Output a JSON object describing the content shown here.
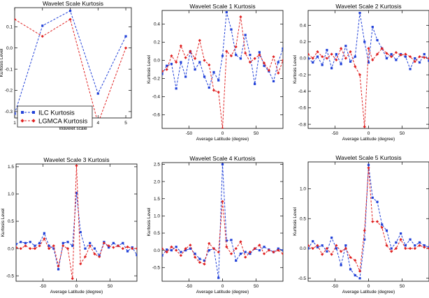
{
  "chart_data": [
    {
      "type": "line",
      "title": "Wavelet Scale Kurtosis",
      "xlabel": "Wavelet scale",
      "ylabel": "Kurtosis Level",
      "xlim": [
        1,
        5.2
      ],
      "ylim": [
        -0.33,
        0.19
      ],
      "xticks": [
        1,
        2,
        3,
        4,
        5
      ],
      "yticks": [
        -0.3,
        -0.2,
        -0.1,
        0.0,
        0.1
      ],
      "ytick_labels": [
        "-0.3",
        "-0.2",
        "-0.1",
        "0.0",
        "0.1"
      ],
      "legend": {
        "position": "bottom-left",
        "entries": [
          "ILC Kurtosis",
          "LGMCA Kurtosis"
        ]
      },
      "series": [
        {
          "name": "ILC Kurtosis",
          "color": "#2040d8",
          "x": [
            1,
            2,
            3,
            4,
            5
          ],
          "values": [
            -0.31,
            0.105,
            0.175,
            -0.215,
            0.055
          ]
        },
        {
          "name": "LGMCA Kurtosis",
          "color": "#e02020",
          "x": [
            1,
            2,
            3,
            4,
            5
          ],
          "values": [
            0.135,
            0.055,
            0.135,
            -0.355,
            0.0
          ]
        }
      ]
    },
    {
      "type": "line",
      "title": "Wavelet Scale 1 Kurtosis",
      "xlabel": "Average Latitude (degree)",
      "ylabel": "Kurtosis Level",
      "xlim": [
        -90,
        90
      ],
      "ylim": [
        -0.75,
        0.55
      ],
      "xticks": [
        -50,
        0,
        50
      ],
      "yticks": [
        -0.6,
        -0.4,
        -0.2,
        0.0,
        0.2,
        0.4
      ],
      "ytick_labels": [
        "-0.6",
        "-0.4",
        "-0.2",
        "0.0",
        "0.2",
        "0.4"
      ],
      "series": [
        {
          "name": "ILC Kurtosis",
          "color": "#2040d8",
          "x": [
            -90,
            -83,
            -76,
            -69,
            -62,
            -55,
            -48,
            -41,
            -34,
            -27,
            -20,
            -13,
            -6,
            0,
            6,
            13,
            20,
            27,
            34,
            41,
            48,
            55,
            62,
            69,
            76,
            83,
            90
          ],
          "values": [
            -0.15,
            -0.06,
            -0.04,
            -0.31,
            -0.02,
            -0.18,
            0.1,
            -0.1,
            -0.02,
            -0.18,
            -0.3,
            -0.13,
            -0.22,
            0.05,
            0.53,
            0.34,
            0.06,
            0.02,
            0.28,
            0.06,
            -0.26,
            0.09,
            -0.06,
            -0.12,
            -0.23,
            -0.02,
            0.13
          ]
        },
        {
          "name": "LGMCA Kurtosis",
          "color": "#e02020",
          "x": [
            -90,
            -83,
            -76,
            -69,
            -62,
            -55,
            -48,
            -41,
            -34,
            -27,
            -20,
            -13,
            -6,
            0,
            6,
            13,
            20,
            27,
            34,
            41,
            48,
            55,
            62,
            69,
            76,
            83,
            90
          ],
          "values": [
            -0.12,
            -0.1,
            0.05,
            -0.02,
            0.16,
            0.03,
            0.1,
            0.02,
            0.22,
            0.0,
            -0.05,
            -0.33,
            -0.35,
            -0.75,
            0.1,
            0.05,
            0.15,
            0.48,
            0.08,
            -0.02,
            0.02,
            0.06,
            -0.03,
            -0.11,
            0.04,
            -0.14,
            0.0
          ]
        }
      ]
    },
    {
      "type": "line",
      "title": "Wavelet Scale 2 Kurtosis",
      "xlabel": "Average Latitude (degree)",
      "ylabel": "Kurtosis Level",
      "xlim": [
        -90,
        90
      ],
      "ylim": [
        -0.85,
        0.58
      ],
      "xticks": [
        -50,
        0,
        50
      ],
      "yticks": [
        -0.8,
        -0.6,
        -0.4,
        -0.2,
        0.0,
        0.2,
        0.4
      ],
      "ytick_labels": [
        "-0.8",
        "-0.6",
        "-0.4",
        "-0.2",
        "0.0",
        "0.2",
        "0.4"
      ],
      "series": [
        {
          "name": "ILC Kurtosis",
          "color": "#2040d8",
          "x": [
            -90,
            -83,
            -76,
            -69,
            -62,
            -55,
            -48,
            -41,
            -34,
            -27,
            -20,
            -13,
            -6,
            0,
            6,
            13,
            20,
            27,
            34,
            41,
            48,
            55,
            62,
            69,
            76,
            83,
            90
          ],
          "values": [
            0.0,
            -0.05,
            0.02,
            -0.08,
            0.1,
            -0.12,
            0.05,
            -0.07,
            0.15,
            -0.04,
            0.02,
            0.55,
            0.2,
            -0.05,
            0.38,
            0.22,
            0.12,
            0.0,
            0.05,
            -0.02,
            0.05,
            0.02,
            -0.13,
            0.0,
            -0.05,
            0.05,
            -0.03
          ]
        },
        {
          "name": "LGMCA Kurtosis",
          "color": "#e02020",
          "x": [
            -90,
            -83,
            -76,
            -69,
            -62,
            -55,
            -48,
            -41,
            -34,
            -27,
            -20,
            -13,
            -6,
            0,
            6,
            13,
            20,
            27,
            34,
            41,
            48,
            55,
            62,
            69,
            76,
            83,
            90
          ],
          "values": [
            0.05,
            0.0,
            0.08,
            0.02,
            0.0,
            0.05,
            -0.02,
            0.12,
            0.0,
            0.08,
            -0.1,
            -0.2,
            -0.83,
            0.12,
            -0.02,
            0.05,
            0.12,
            0.06,
            0.02,
            0.07,
            0.04,
            0.05,
            0.02,
            -0.04,
            0.02,
            0.01,
            0.0
          ]
        }
      ]
    },
    {
      "type": "line",
      "title": "Wavelet Scale 3 Kurtosis",
      "xlabel": "Average Latitude (degree)",
      "ylabel": "Kurtosis Level",
      "xlim": [
        -90,
        90
      ],
      "ylim": [
        -0.6,
        1.55
      ],
      "xticks": [
        -50,
        0,
        50
      ],
      "yticks": [
        -0.5,
        0.0,
        0.5,
        1.0,
        1.5
      ],
      "ytick_labels": [
        "-0.5",
        "0.0",
        "0.5",
        "1.0",
        "1.5"
      ],
      "series": [
        {
          "name": "ILC Kurtosis",
          "color": "#2040d8",
          "x": [
            -90,
            -83,
            -76,
            -69,
            -62,
            -55,
            -48,
            -41,
            -34,
            -27,
            -20,
            -13,
            -6,
            0,
            6,
            13,
            20,
            27,
            34,
            41,
            48,
            55,
            62,
            69,
            76,
            83,
            90
          ],
          "values": [
            0.08,
            0.12,
            0.1,
            0.12,
            0.05,
            0.1,
            0.28,
            0.05,
            0.0,
            -0.38,
            0.1,
            0.12,
            0.05,
            1.02,
            0.3,
            0.0,
            0.1,
            0.0,
            -0.13,
            0.12,
            0.02,
            0.1,
            0.05,
            0.1,
            -0.05,
            0.02,
            -0.12
          ]
        },
        {
          "name": "LGMCA Kurtosis",
          "color": "#e02020",
          "x": [
            -90,
            -83,
            -76,
            -69,
            -62,
            -55,
            -48,
            -41,
            -34,
            -27,
            -20,
            -13,
            -6,
            0,
            6,
            13,
            20,
            27,
            34,
            41,
            48,
            55,
            62,
            69,
            76,
            83,
            90
          ],
          "values": [
            0.02,
            0.0,
            0.05,
            0.0,
            0.0,
            0.05,
            0.18,
            0.0,
            0.05,
            -0.32,
            0.05,
            0.0,
            -0.55,
            1.52,
            -0.28,
            -0.15,
            0.05,
            -0.1,
            -0.15,
            0.1,
            0.05,
            0.02,
            0.05,
            0.0,
            0.03,
            0.0,
            0.0
          ]
        }
      ]
    },
    {
      "type": "line",
      "title": "Wavelet Scale 4 Kurtosis",
      "xlabel": "Average Latitude (degree)",
      "ylabel": "Kurtosis Level",
      "xlim": [
        -90,
        90
      ],
      "ylim": [
        -0.9,
        2.55
      ],
      "xticks": [
        -50,
        0,
        50
      ],
      "yticks": [
        -0.5,
        0.0,
        0.5,
        1.0,
        1.5,
        2.0,
        2.5
      ],
      "ytick_labels": [
        "-0.5",
        "0.0",
        "0.5",
        "1.0",
        "1.5",
        "2.0",
        "2.5"
      ],
      "series": [
        {
          "name": "ILC Kurtosis",
          "color": "#2040d8",
          "x": [
            -90,
            -83,
            -76,
            -69,
            -62,
            -55,
            -48,
            -41,
            -34,
            -27,
            -20,
            -13,
            -6,
            0,
            6,
            13,
            20,
            27,
            34,
            41,
            48,
            55,
            62,
            69,
            76,
            83,
            90
          ],
          "values": [
            -0.15,
            0.02,
            0.0,
            0.1,
            -0.05,
            0.0,
            0.05,
            -0.1,
            -0.25,
            -0.3,
            0.0,
            0.05,
            -0.8,
            2.5,
            0.28,
            0.3,
            -0.3,
            -0.1,
            -0.05,
            -0.1,
            0.05,
            0.0,
            0.1,
            0.02,
            -0.05,
            0.05,
            0.0
          ]
        },
        {
          "name": "LGMCA Kurtosis",
          "color": "#e02020",
          "x": [
            -90,
            -83,
            -76,
            -69,
            -62,
            -55,
            -48,
            -41,
            -34,
            -27,
            -20,
            -13,
            -6,
            0,
            6,
            13,
            20,
            27,
            34,
            41,
            48,
            55,
            62,
            69,
            76,
            83,
            90
          ],
          "values": [
            0.05,
            -0.05,
            0.1,
            0.0,
            -0.15,
            0.05,
            0.15,
            -0.2,
            -0.35,
            -0.4,
            0.2,
            0.05,
            -0.05,
            1.42,
            0.1,
            -0.1,
            0.05,
            0.25,
            -0.2,
            -0.05,
            0.05,
            0.15,
            -0.1,
            0.0,
            -0.05,
            0.0,
            -0.1
          ]
        }
      ]
    },
    {
      "type": "line",
      "title": "Wavelet Scale 5 Kurtosis",
      "xlabel": "Average Latitude (degree)",
      "ylabel": "Kurtosis Level",
      "xlim": [
        -90,
        90
      ],
      "ylim": [
        -0.55,
        1.45
      ],
      "xticks": [
        -50,
        0,
        50
      ],
      "yticks": [
        -0.5,
        0.0,
        0.5,
        1.0
      ],
      "ytick_labels": [
        "-0.5",
        "0.0",
        "0.5",
        "1.0"
      ],
      "series": [
        {
          "name": "ILC Kurtosis",
          "color": "#2040d8",
          "x": [
            -90,
            -83,
            -76,
            -69,
            -62,
            -55,
            -48,
            -41,
            -34,
            -27,
            -20,
            -13,
            -6,
            0,
            6,
            13,
            20,
            27,
            34,
            41,
            48,
            55,
            62,
            69,
            76,
            83,
            90
          ],
          "values": [
            0.0,
            0.12,
            0.02,
            0.05,
            -0.05,
            0.18,
            0.0,
            -0.28,
            0.05,
            -0.35,
            -0.45,
            -0.5,
            0.15,
            1.4,
            0.85,
            0.78,
            0.4,
            0.3,
            0.0,
            0.1,
            0.25,
            0.05,
            0.15,
            0.05,
            0.1,
            0.05,
            0.02
          ]
        },
        {
          "name": "LGMCA Kurtosis",
          "color": "#e02020",
          "x": [
            -90,
            -83,
            -76,
            -69,
            -62,
            -55,
            -48,
            -41,
            -34,
            -27,
            -20,
            -13,
            -6,
            0,
            6,
            13,
            20,
            27,
            34,
            41,
            48,
            55,
            62,
            69,
            76,
            83,
            90
          ],
          "values": [
            0.05,
            0.0,
            0.05,
            -0.1,
            0.0,
            -0.1,
            0.05,
            -0.05,
            0.0,
            -0.15,
            -0.2,
            -0.38,
            0.3,
            1.35,
            0.45,
            0.45,
            0.35,
            0.05,
            -0.05,
            0.0,
            0.15,
            0.0,
            0.0,
            0.0,
            0.05,
            0.02,
            0.0
          ]
        }
      ]
    }
  ]
}
